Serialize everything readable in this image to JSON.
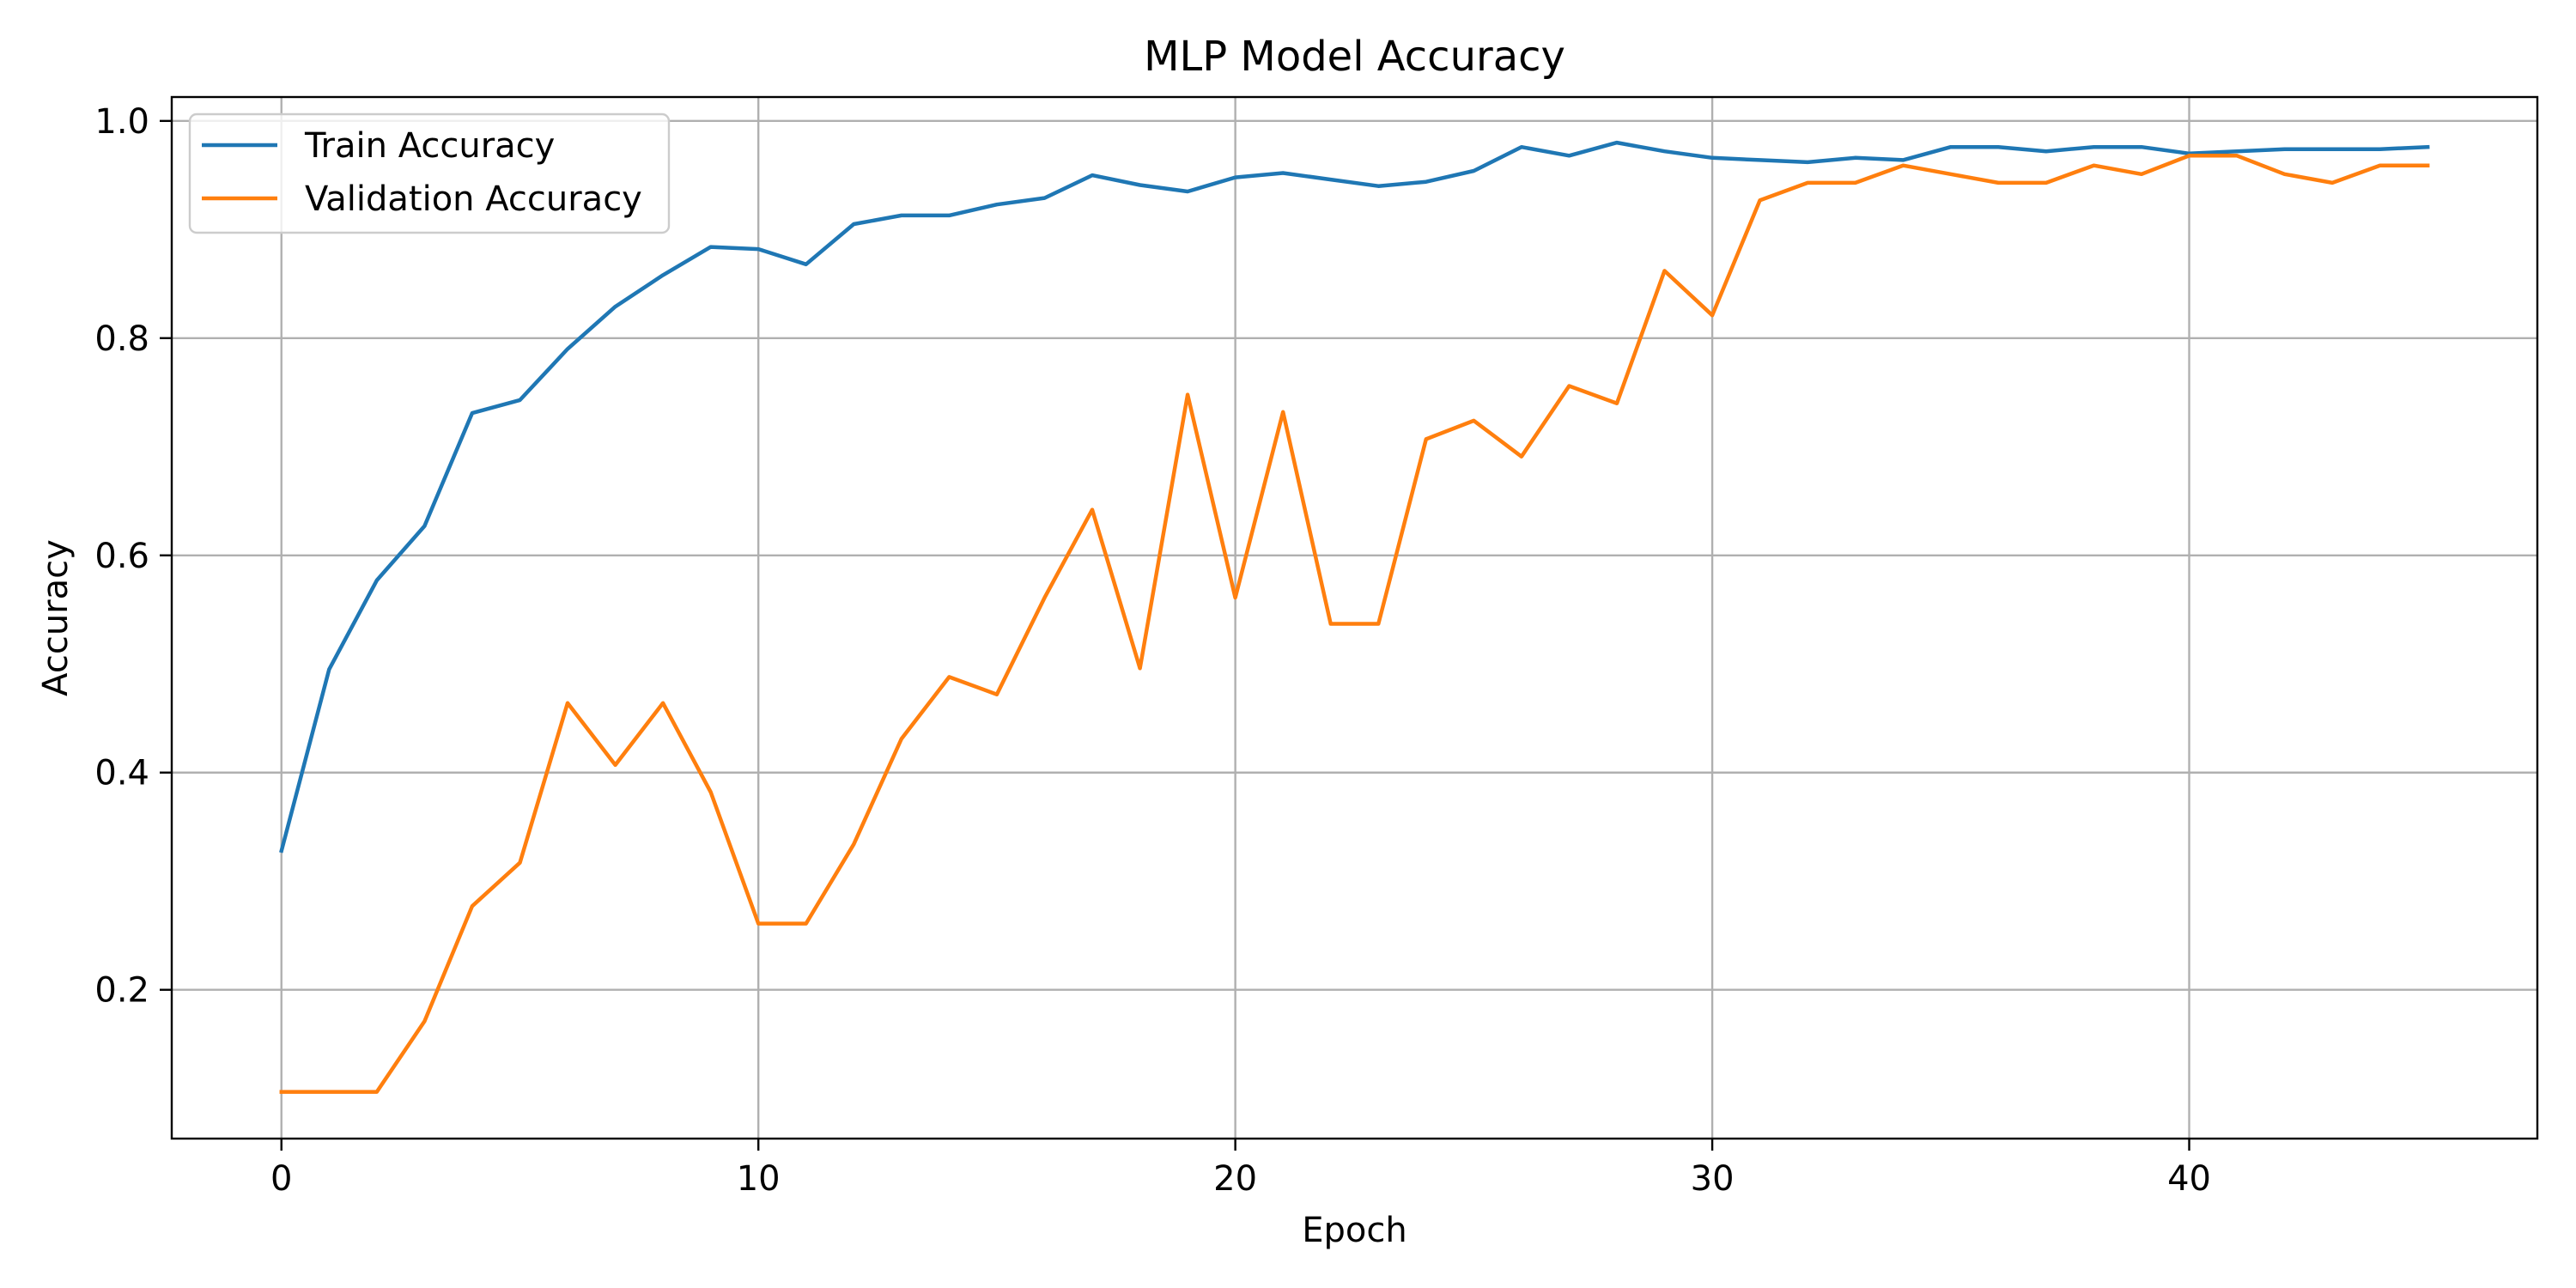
{
  "chart_data": {
    "type": "line",
    "title": "MLP Model Accuracy",
    "xlabel": "Epoch",
    "ylabel": "Accuracy",
    "xlim": [
      -2.3,
      47.3
    ],
    "ylim": [
      0.063,
      1.022
    ],
    "xticks": [
      0,
      10,
      20,
      30,
      40
    ],
    "xtick_labels": [
      "0",
      "10",
      "20",
      "30",
      "40"
    ],
    "yticks": [
      0.2,
      0.4,
      0.6,
      0.8,
      1.0
    ],
    "ytick_labels": [
      "0.2",
      "0.4",
      "0.6",
      "0.8",
      "1.0"
    ],
    "grid": true,
    "legend_position": "top-left",
    "x": [
      0,
      1,
      2,
      3,
      4,
      5,
      6,
      7,
      8,
      9,
      10,
      11,
      12,
      13,
      14,
      15,
      16,
      17,
      18,
      19,
      20,
      21,
      22,
      23,
      24,
      25,
      26,
      27,
      28,
      29,
      30,
      31,
      32,
      33,
      34,
      35,
      36,
      37,
      38,
      39,
      40,
      41,
      42,
      43,
      44,
      45
    ],
    "series": [
      {
        "name": "Train Accuracy",
        "color": "#1f77b4",
        "values": [
          0.328,
          0.495,
          0.577,
          0.627,
          0.731,
          0.743,
          0.79,
          0.829,
          0.858,
          0.884,
          0.882,
          0.868,
          0.905,
          0.913,
          0.913,
          0.923,
          0.929,
          0.95,
          0.941,
          0.935,
          0.948,
          0.952,
          0.946,
          0.94,
          0.944,
          0.954,
          0.976,
          0.968,
          0.98,
          0.972,
          0.966,
          0.964,
          0.962,
          0.966,
          0.964,
          0.976,
          0.976,
          0.972,
          0.976,
          0.976,
          0.97,
          0.972,
          0.974,
          0.974,
          0.974,
          0.976
        ]
      },
      {
        "name": "Validation Accuracy",
        "color": "#ff7f0e",
        "values": [
          0.106,
          0.106,
          0.106,
          0.171,
          0.277,
          0.317,
          0.464,
          0.407,
          0.464,
          0.382,
          0.261,
          0.261,
          0.334,
          0.431,
          0.488,
          0.472,
          0.561,
          0.642,
          0.496,
          0.748,
          0.561,
          0.732,
          0.537,
          0.537,
          0.707,
          0.724,
          0.691,
          0.756,
          0.74,
          0.862,
          0.821,
          0.927,
          0.943,
          0.943,
          0.959,
          0.951,
          0.943,
          0.943,
          0.959,
          0.951,
          0.968,
          0.968,
          0.951,
          0.943,
          0.959,
          0.959
        ]
      }
    ]
  }
}
